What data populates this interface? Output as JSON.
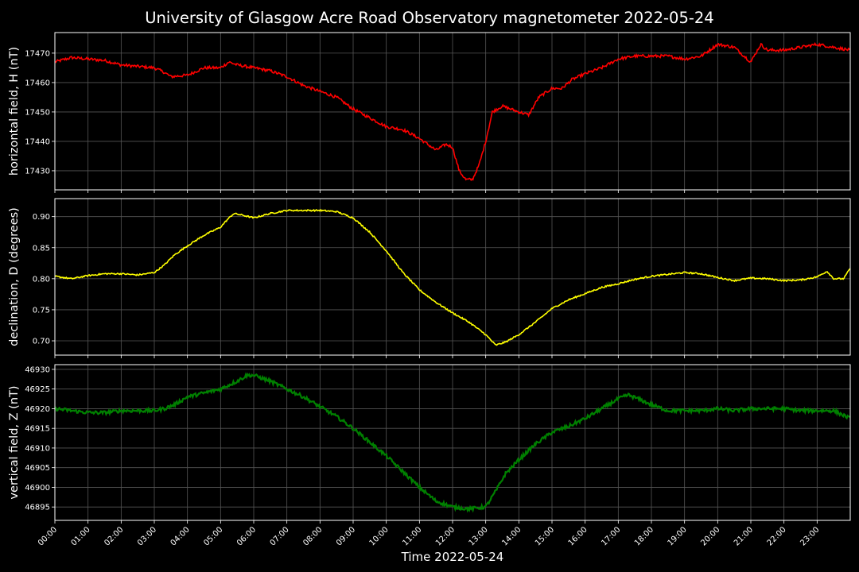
{
  "chart_data": {
    "type": "line",
    "title": "University of Glasgow Acre Road Observatory magnetometer 2022-05-24",
    "xlabel": "Time 2022-05-24",
    "x_tick_labels": [
      "00:00",
      "01:00",
      "02:00",
      "03:00",
      "04:00",
      "05:00",
      "06:00",
      "07:00",
      "08:00",
      "09:00",
      "10:00",
      "11:00",
      "12:00",
      "13:00",
      "14:00",
      "15:00",
      "16:00",
      "17:00",
      "18:00",
      "19:00",
      "20:00",
      "21:00",
      "22:00",
      "23:00"
    ],
    "x_unit": "hours",
    "xlim": [
      0,
      24
    ],
    "grid": true,
    "panels": [
      {
        "ylabel": "horizontal field, H (nT)",
        "color": "#ff0000",
        "ylim": [
          17423.5,
          17477
        ],
        "yticks": [
          17430,
          17440,
          17450,
          17460,
          17470
        ],
        "ytick_labels": [
          "17430",
          "17440",
          "17450",
          "17460",
          "17470"
        ],
        "x": [
          0,
          0.5,
          1,
          1.5,
          2,
          2.5,
          3,
          3.3,
          3.5,
          4,
          4.5,
          5,
          5.25,
          5.5,
          6,
          6.5,
          7,
          7.5,
          8,
          8.5,
          9,
          9.5,
          10,
          10.5,
          11,
          11.5,
          11.8,
          12,
          12.2,
          12.4,
          12.6,
          12.8,
          13,
          13.2,
          13.5,
          14,
          14.3,
          14.6,
          15,
          15.3,
          15.6,
          16,
          16.5,
          17,
          17.5,
          18,
          18.5,
          19,
          19.5,
          20,
          20.5,
          21,
          21.3,
          21.5,
          22,
          22.5,
          23,
          23.5,
          24
        ],
        "values": [
          17467,
          17468.5,
          17468,
          17467.5,
          17466,
          17465.5,
          17465,
          17463.5,
          17462,
          17462.5,
          17465,
          17465,
          17467,
          17466,
          17465,
          17464,
          17462,
          17459,
          17457,
          17455,
          17451,
          17448,
          17445,
          17444,
          17441,
          17437,
          17439,
          17438,
          17430,
          17427,
          17427,
          17432,
          17440,
          17450,
          17452,
          17450,
          17449,
          17455,
          17458,
          17458,
          17461,
          17463,
          17465,
          17468,
          17469,
          17469,
          17469,
          17468,
          17469,
          17473,
          17472,
          17467,
          17473,
          17471,
          17471,
          17472,
          17473,
          17472,
          17471
        ],
        "noise": 0.5
      },
      {
        "ylabel": "declination, D (degrees)",
        "color": "#ffff00",
        "ylim": [
          0.677,
          0.929
        ],
        "yticks": [
          0.7,
          0.75,
          0.8,
          0.85,
          0.9
        ],
        "ytick_labels": [
          "0.70",
          "0.75",
          "0.80",
          "0.85",
          "0.90"
        ],
        "x": [
          0,
          0.5,
          1,
          1.5,
          2,
          2.5,
          3,
          3.3,
          3.6,
          4,
          4.5,
          5,
          5.2,
          5.4,
          5.6,
          6,
          6.5,
          7,
          7.5,
          8,
          8.5,
          9,
          9.5,
          10,
          10.5,
          11,
          11.5,
          12,
          12.5,
          13,
          13.3,
          13.6,
          14,
          14.5,
          15,
          15.5,
          16,
          16.5,
          17,
          17.5,
          18,
          18.5,
          19,
          19.5,
          20,
          20.5,
          21,
          21.5,
          22,
          22.5,
          23,
          23.3,
          23.5,
          23.8,
          24
        ],
        "values": [
          0.804,
          0.8,
          0.805,
          0.808,
          0.808,
          0.806,
          0.81,
          0.822,
          0.838,
          0.853,
          0.87,
          0.883,
          0.895,
          0.905,
          0.903,
          0.898,
          0.905,
          0.91,
          0.91,
          0.91,
          0.908,
          0.898,
          0.875,
          0.845,
          0.81,
          0.782,
          0.762,
          0.745,
          0.73,
          0.71,
          0.693,
          0.698,
          0.71,
          0.73,
          0.752,
          0.766,
          0.776,
          0.786,
          0.792,
          0.799,
          0.804,
          0.807,
          0.81,
          0.808,
          0.802,
          0.797,
          0.801,
          0.8,
          0.797,
          0.798,
          0.803,
          0.812,
          0.8,
          0.8,
          0.817
        ],
        "noise": 0.0012
      },
      {
        "ylabel": "vertical field, Z (nT)",
        "color": "#008000",
        "ylim": [
          46891.6,
          46931.2
        ],
        "yticks": [
          46895,
          46900,
          46905,
          46910,
          46915,
          46920,
          46925,
          46930
        ],
        "ytick_labels": [
          "46895",
          "46900",
          "46905",
          "46910",
          "46915",
          "46920",
          "46925",
          "46930"
        ],
        "x": [
          0,
          0.5,
          1,
          1.5,
          2,
          2.5,
          3,
          3.3,
          3.6,
          4,
          4.5,
          5,
          5.5,
          5.8,
          6,
          6.5,
          7,
          7.5,
          8,
          8.5,
          9,
          9.5,
          10,
          10.5,
          11,
          11.5,
          12,
          12.5,
          13,
          13.3,
          13.6,
          14,
          14.5,
          15,
          15.5,
          16,
          16.5,
          17,
          17.3,
          17.6,
          18,
          18.5,
          19,
          19.5,
          20,
          20.5,
          21,
          21.5,
          22,
          22.5,
          23,
          23.5,
          24
        ],
        "values": [
          46920,
          46919.5,
          46919,
          46919,
          46919.5,
          46919.5,
          46919.5,
          46920,
          46921,
          46923,
          46924,
          46925,
          46927,
          46928.5,
          46928.5,
          46927,
          46925,
          46923,
          46920.5,
          46918,
          46915,
          46911.5,
          46908,
          46904,
          46900,
          46896.5,
          46895,
          46894.5,
          46895,
          46899,
          46903.5,
          46907,
          46911,
          46914,
          46915.5,
          46917.5,
          46920,
          46922.5,
          46923.5,
          46922.5,
          46921,
          46919.5,
          46919.5,
          46919.5,
          46920,
          46919.5,
          46920,
          46920,
          46920,
          46919.5,
          46919.5,
          46919.5,
          46917.5
        ],
        "noise": 0.45
      }
    ]
  }
}
